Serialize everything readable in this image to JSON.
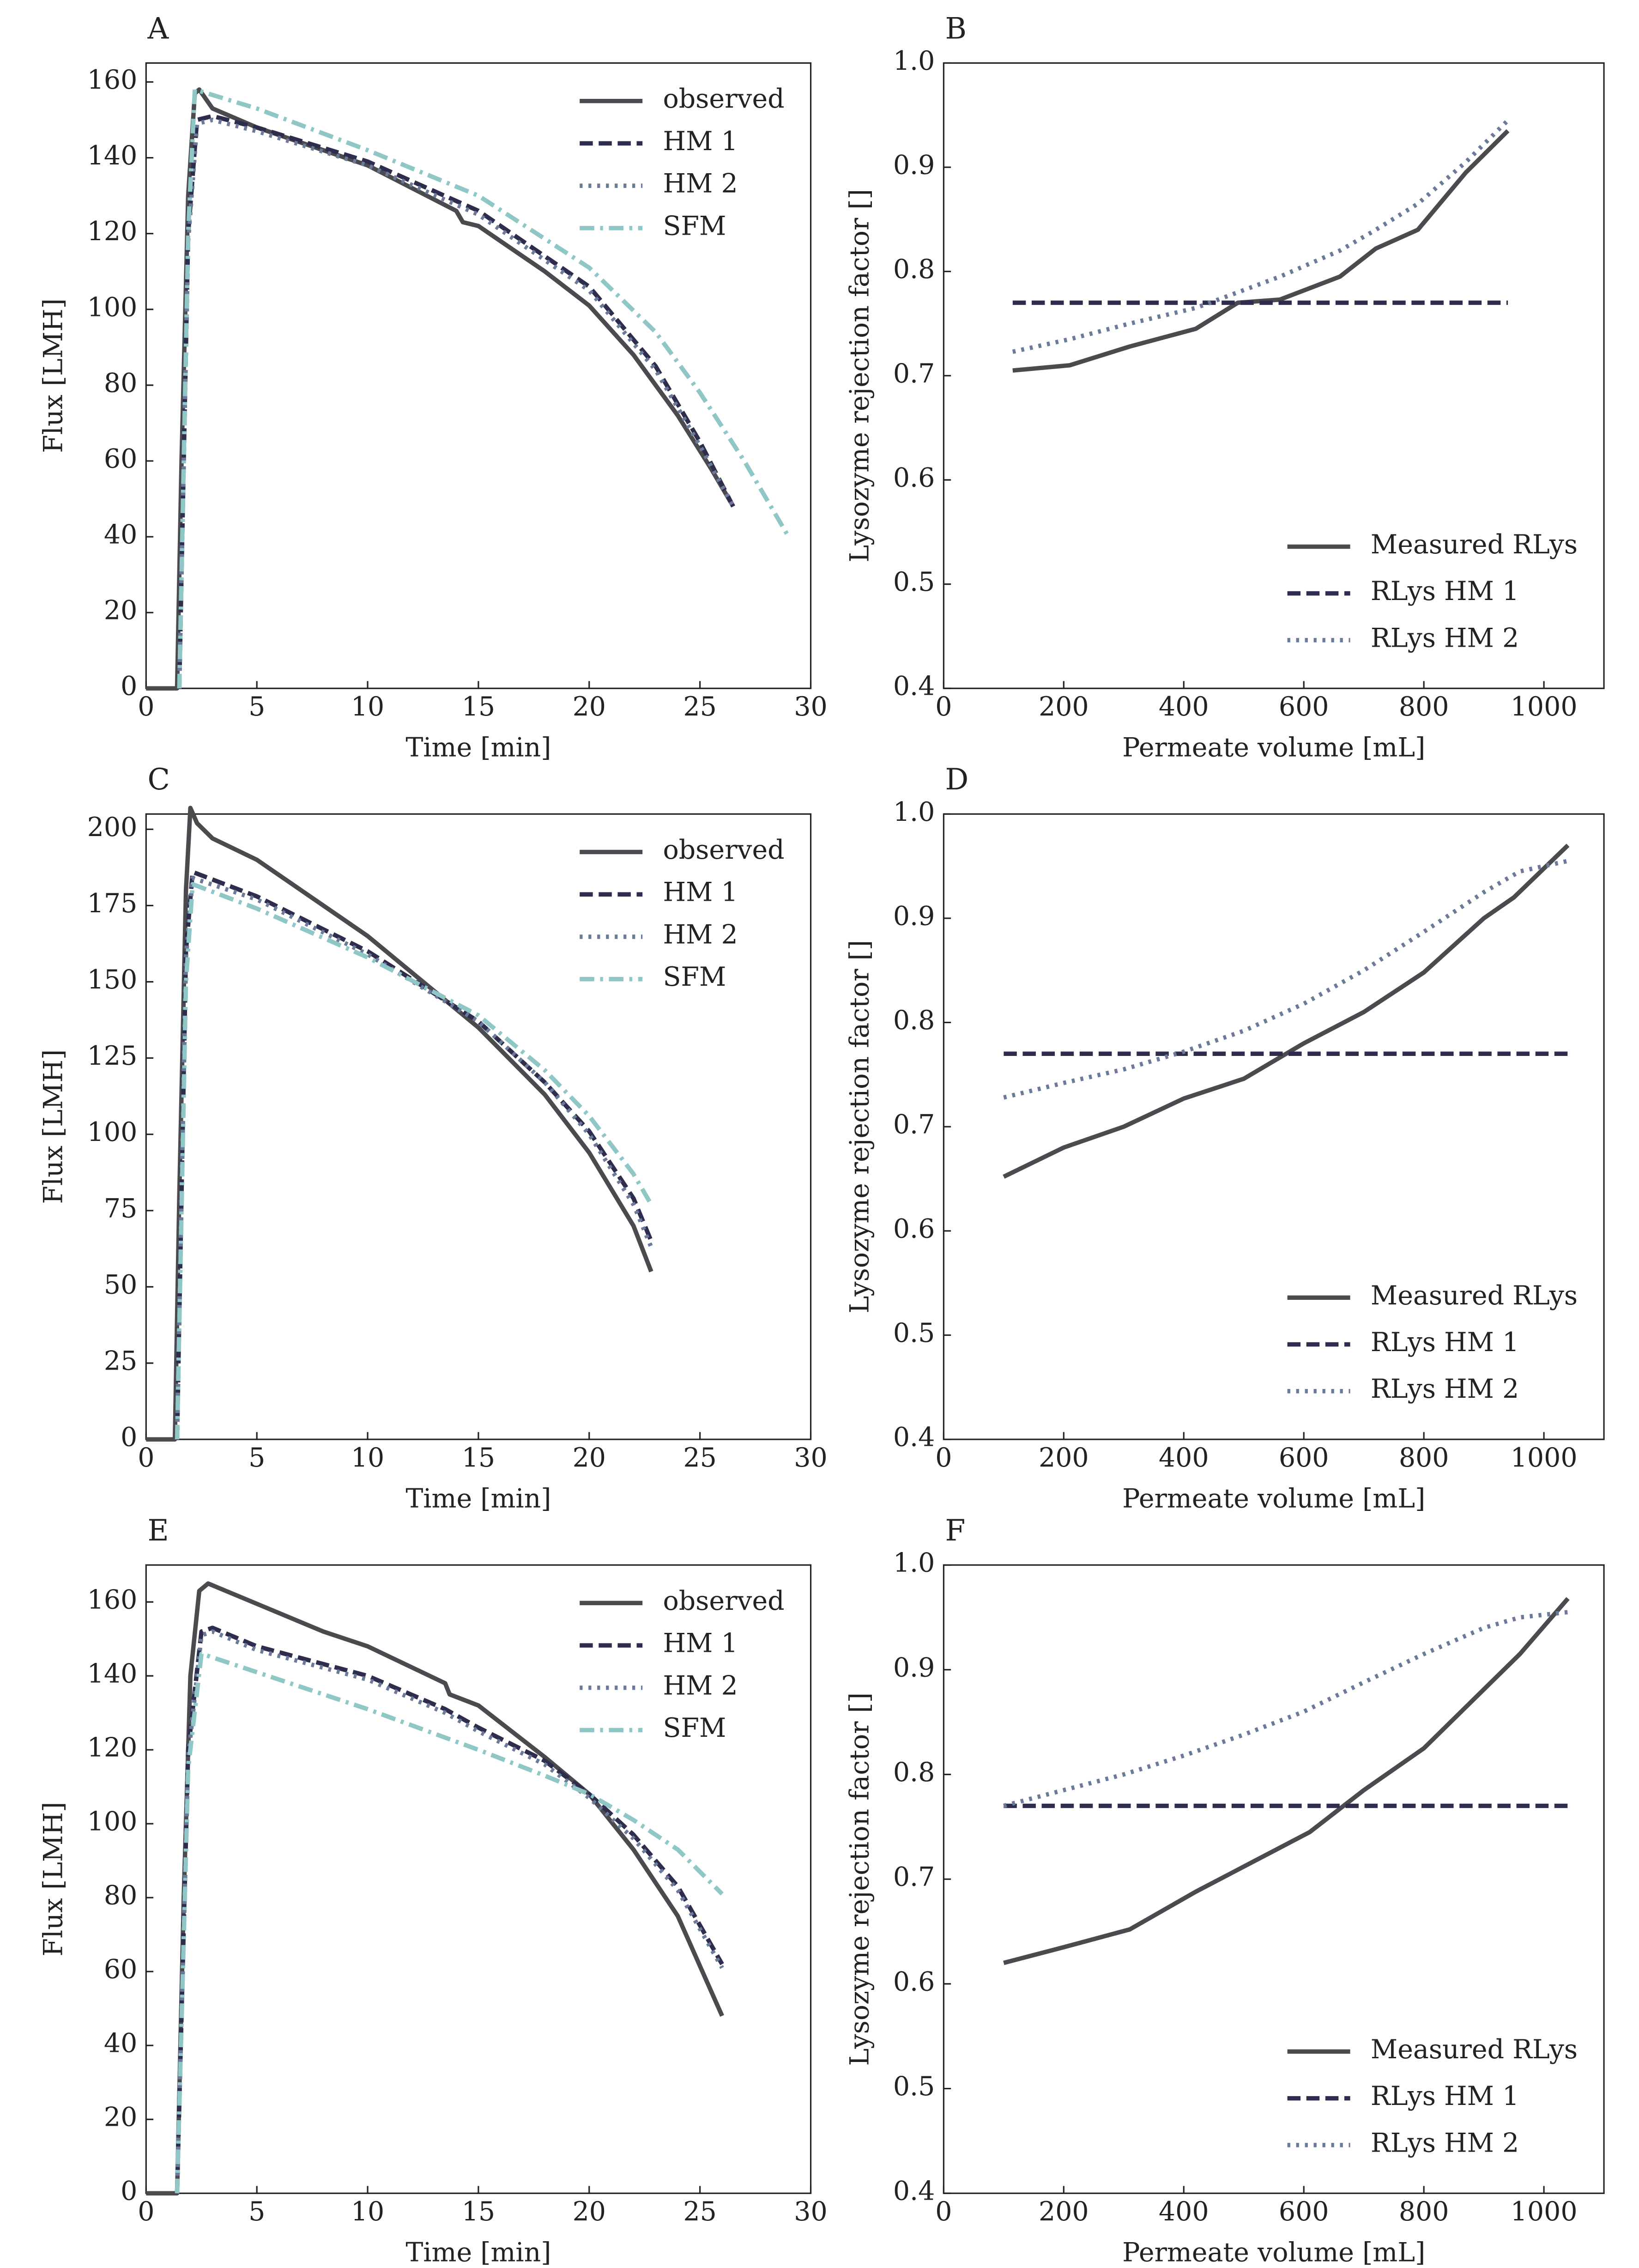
{
  "chart_data": [
    {
      "type": "line",
      "title": "A",
      "xlabel": "Time [min]",
      "ylabel": "Flux [LMH]",
      "xlim": [
        0,
        30
      ],
      "ylim": [
        0,
        165
      ],
      "xticks": [
        0,
        5,
        10,
        15,
        20,
        25,
        30
      ],
      "yticks": [
        0,
        20,
        40,
        60,
        80,
        100,
        120,
        140,
        160
      ],
      "legend": "upper right",
      "series": [
        {
          "name": "observed",
          "color": "#4a4a4f",
          "style": "solid",
          "x": [
            0,
            1.4,
            1.6,
            1.9,
            2.2,
            2.4,
            3,
            5,
            10,
            14,
            14.3,
            15,
            18,
            20,
            22,
            24,
            25.5,
            26.5
          ],
          "values": [
            0,
            0,
            60,
            130,
            157,
            158,
            153,
            148,
            138,
            126,
            123,
            122,
            110,
            101,
            88,
            72,
            58,
            48
          ]
        },
        {
          "name": "HM 1",
          "color": "#2e2d4d",
          "style": "dashed",
          "x": [
            1.5,
            1.9,
            2.3,
            3,
            5,
            10,
            15,
            20,
            23,
            25,
            26.5
          ],
          "values": [
            0,
            120,
            150,
            151,
            148,
            139,
            126,
            106,
            85,
            65,
            48
          ]
        },
        {
          "name": "HM 2",
          "color": "#6b7a99",
          "style": "dotted",
          "x": [
            1.5,
            1.9,
            2.3,
            3,
            5,
            10,
            15,
            20,
            23,
            25,
            26.5
          ],
          "values": [
            0,
            118,
            149,
            150,
            147,
            138,
            125,
            105,
            84,
            64,
            48
          ]
        },
        {
          "name": "SFM",
          "color": "#8fc6c6",
          "style": "dashdot",
          "x": [
            1.5,
            1.9,
            2.2,
            5,
            10,
            15,
            20,
            23,
            25,
            27,
            29
          ],
          "values": [
            0,
            120,
            158,
            153,
            142,
            130,
            111,
            94,
            78,
            60,
            40
          ]
        }
      ]
    },
    {
      "type": "line",
      "title": "B",
      "xlabel": "Permeate volume [mL]",
      "ylabel": "Lysozyme rejection factor []",
      "xlim": [
        0,
        1100
      ],
      "ylim": [
        0.4,
        1.0
      ],
      "xticks": [
        0,
        200,
        400,
        600,
        800,
        1000
      ],
      "yticks": [
        0.4,
        0.5,
        0.6,
        0.7,
        0.8,
        0.9,
        {
          "value": 1,
          "label": "1.0"
        }
      ],
      "legend": "lower right",
      "series": [
        {
          "name": "Measured RLys",
          "color": "#4a4a4f",
          "style": "solid",
          "x": [
            115,
            210,
            310,
            420,
            490,
            560,
            660,
            720,
            790,
            870,
            940
          ],
          "values": [
            0.705,
            0.71,
            0.728,
            0.745,
            0.77,
            0.773,
            0.795,
            0.822,
            0.84,
            0.895,
            0.935
          ]
        },
        {
          "name": "RLys HM 1",
          "color": "#2e2d4d",
          "style": "dashed",
          "x": [
            115,
            940
          ],
          "values": [
            0.77,
            0.77
          ]
        },
        {
          "name": "RLys HM 2",
          "color": "#6b7a99",
          "style": "dotted",
          "x": [
            115,
            210,
            310,
            420,
            490,
            560,
            660,
            720,
            790,
            870,
            940
          ],
          "values": [
            0.723,
            0.735,
            0.75,
            0.765,
            0.78,
            0.795,
            0.82,
            0.84,
            0.865,
            0.905,
            0.945
          ]
        }
      ]
    },
    {
      "type": "line",
      "title": "C",
      "xlabel": "Time [min]",
      "ylabel": "Flux [LMH]",
      "xlim": [
        0,
        30
      ],
      "ylim": [
        0,
        205
      ],
      "xticks": [
        0,
        5,
        10,
        15,
        20,
        25,
        30
      ],
      "yticks": [
        0,
        25,
        50,
        75,
        100,
        125,
        150,
        175,
        200
      ],
      "legend": "upper right",
      "series": [
        {
          "name": "observed",
          "color": "#4a4a4f",
          "style": "solid",
          "x": [
            0,
            1.3,
            1.5,
            1.8,
            2,
            2.3,
            3,
            5,
            10,
            15,
            18,
            20,
            22,
            22.8
          ],
          "values": [
            0,
            0,
            80,
            180,
            207,
            202,
            197,
            190,
            165,
            135,
            113,
            94,
            70,
            55
          ]
        },
        {
          "name": "HM 1",
          "color": "#2e2d4d",
          "style": "dashed",
          "x": [
            1.4,
            1.8,
            2.1,
            5,
            10,
            15,
            18,
            20,
            22,
            22.8
          ],
          "values": [
            0,
            160,
            186,
            178,
            160,
            137,
            117,
            101,
            79,
            65
          ]
        },
        {
          "name": "HM 2",
          "color": "#6b7a99",
          "style": "dotted",
          "x": [
            1.4,
            1.8,
            2.1,
            5,
            10,
            15,
            18,
            20,
            22,
            22.8
          ],
          "values": [
            0,
            158,
            184,
            177,
            159,
            137,
            117,
            100,
            77,
            63
          ]
        },
        {
          "name": "SFM",
          "color": "#8fc6c6",
          "style": "dashdot",
          "x": [
            1.4,
            1.8,
            2.1,
            5,
            10,
            15,
            18,
            20,
            22,
            22.8
          ],
          "values": [
            0,
            150,
            182,
            174,
            158,
            139,
            121,
            106,
            87,
            77
          ]
        }
      ]
    },
    {
      "type": "line",
      "title": "D",
      "xlabel": "Permeate volume [mL]",
      "ylabel": "Lysozyme rejection factor []",
      "xlim": [
        0,
        1100
      ],
      "ylim": [
        0.4,
        1.0
      ],
      "xticks": [
        0,
        200,
        400,
        600,
        800,
        1000
      ],
      "yticks": [
        0.4,
        0.5,
        0.6,
        0.7,
        0.8,
        0.9,
        {
          "value": 1,
          "label": "1.0"
        }
      ],
      "legend": "lower right",
      "series": [
        {
          "name": "Measured RLys",
          "color": "#4a4a4f",
          "style": "solid",
          "x": [
            100,
            200,
            300,
            400,
            500,
            600,
            700,
            800,
            900,
            950,
            1040
          ],
          "values": [
            0.652,
            0.68,
            0.7,
            0.727,
            0.746,
            0.78,
            0.81,
            0.848,
            0.9,
            0.92,
            0.97
          ]
        },
        {
          "name": "RLys HM 1",
          "color": "#2e2d4d",
          "style": "dashed",
          "x": [
            100,
            1040
          ],
          "values": [
            0.77,
            0.77
          ]
        },
        {
          "name": "RLys HM 2",
          "color": "#6b7a99",
          "style": "dotted",
          "x": [
            100,
            200,
            300,
            400,
            500,
            600,
            700,
            800,
            900,
            960,
            1040
          ],
          "values": [
            0.728,
            0.742,
            0.755,
            0.772,
            0.792,
            0.818,
            0.85,
            0.887,
            0.925,
            0.945,
            0.955
          ]
        }
      ]
    },
    {
      "type": "line",
      "title": "E",
      "xlabel": "Time [min]",
      "ylabel": "Flux [LMH]",
      "xlim": [
        0,
        30
      ],
      "ylim": [
        0,
        170
      ],
      "xticks": [
        0,
        5,
        10,
        15,
        20,
        25,
        30
      ],
      "yticks": [
        0,
        20,
        40,
        60,
        80,
        100,
        120,
        140,
        160
      ],
      "legend": "upper right",
      "series": [
        {
          "name": "observed",
          "color": "#4a4a4f",
          "style": "solid",
          "x": [
            0,
            1.4,
            1.7,
            2,
            2.4,
            2.8,
            4,
            8,
            10,
            13.5,
            13.7,
            15,
            18,
            20,
            22,
            24,
            26
          ],
          "values": [
            0,
            0,
            80,
            140,
            163,
            165,
            162,
            152,
            148,
            138,
            135,
            132,
            118,
            108,
            93,
            75,
            48
          ]
        },
        {
          "name": "HM 1",
          "color": "#2e2d4d",
          "style": "dashed",
          "x": [
            1.4,
            1.9,
            2.5,
            3,
            5,
            10,
            13.5,
            15,
            18,
            20,
            22,
            24,
            26
          ],
          "values": [
            0,
            120,
            152,
            153,
            148,
            140,
            131,
            126,
            117,
            108,
            97,
            83,
            62
          ]
        },
        {
          "name": "HM 2",
          "color": "#6b7a99",
          "style": "dotted",
          "x": [
            1.4,
            1.9,
            2.5,
            3,
            5,
            10,
            13.5,
            15,
            18,
            20,
            22,
            24,
            26
          ],
          "values": [
            0,
            118,
            151,
            152,
            147,
            139,
            130,
            125,
            116,
            107,
            96,
            82,
            61
          ]
        },
        {
          "name": "SFM",
          "color": "#8fc6c6",
          "style": "dashdot",
          "x": [
            1.4,
            1.9,
            2.5,
            5,
            10,
            15,
            18,
            20,
            22,
            24,
            26
          ],
          "values": [
            0,
            115,
            146,
            141,
            131,
            120,
            113,
            108,
            101,
            93,
            81
          ]
        }
      ]
    },
    {
      "type": "line",
      "title": "F",
      "xlabel": "Permeate volume [mL]",
      "ylabel": "Lysozyme rejection factor []",
      "xlim": [
        0,
        1100
      ],
      "ylim": [
        0.4,
        1.0
      ],
      "xticks": [
        0,
        200,
        400,
        600,
        800,
        1000
      ],
      "yticks": [
        0.4,
        0.5,
        0.6,
        0.7,
        0.8,
        0.9,
        {
          "value": 1,
          "label": "1.0"
        }
      ],
      "legend": "lower right",
      "series": [
        {
          "name": "Measured RLys",
          "color": "#4a4a4f",
          "style": "solid",
          "x": [
            100,
            200,
            310,
            420,
            520,
            610,
            700,
            800,
            880,
            960,
            1040
          ],
          "values": [
            0.62,
            0.635,
            0.652,
            0.688,
            0.718,
            0.745,
            0.785,
            0.825,
            0.87,
            0.915,
            0.968
          ]
        },
        {
          "name": "RLys HM 1",
          "color": "#2e2d4d",
          "style": "dashed",
          "x": [
            100,
            1040
          ],
          "values": [
            0.77,
            0.77
          ]
        },
        {
          "name": "RLys HM 2",
          "color": "#6b7a99",
          "style": "dotted",
          "x": [
            100,
            200,
            300,
            400,
            500,
            600,
            700,
            800,
            900,
            960,
            1040
          ],
          "values": [
            0.77,
            0.785,
            0.8,
            0.818,
            0.838,
            0.86,
            0.888,
            0.915,
            0.94,
            0.95,
            0.955
          ]
        }
      ]
    }
  ]
}
